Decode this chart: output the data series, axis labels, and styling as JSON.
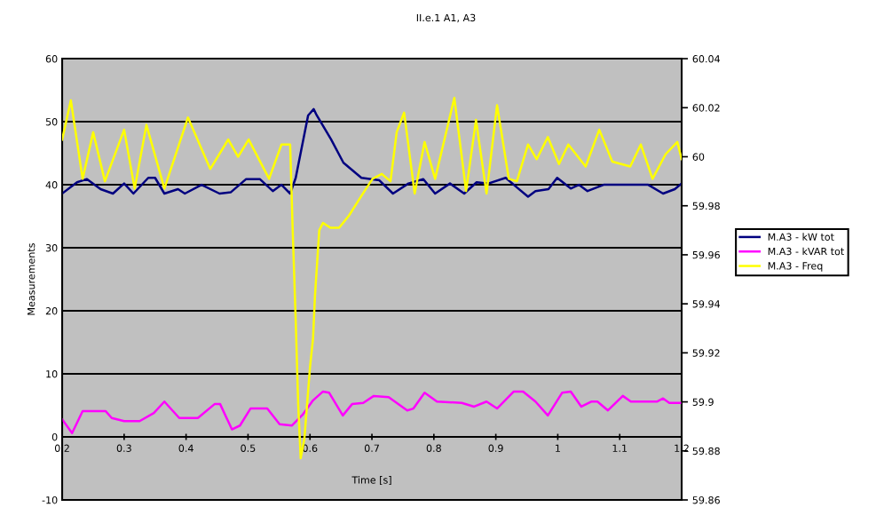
{
  "chart_data": {
    "type": "line",
    "title": "II.e.1 A1, A3",
    "xlabel": "Time [s]",
    "ylabel": "Measurements",
    "xlim": [
      0.2,
      1.2
    ],
    "xticks": [
      0.2,
      0.3,
      0.4,
      0.5,
      0.6,
      0.7,
      0.8,
      0.9,
      1,
      1.1,
      1.2
    ],
    "ylim": [
      -10,
      60
    ],
    "yticks": [
      -10,
      0,
      10,
      20,
      30,
      40,
      50,
      60
    ],
    "y2lim": [
      59.86,
      60.04
    ],
    "y2ticks": [
      59.86,
      59.88,
      59.9,
      59.92,
      59.94,
      59.96,
      59.98,
      60,
      60.02,
      60.04
    ],
    "grid": "y",
    "legend": "right",
    "line_style": "solid",
    "marker": "none",
    "series": [
      {
        "name": "M.A3 - kW tot",
        "color": "#000080",
        "x": [
          0.2,
          0.224,
          0.24,
          0.262,
          0.282,
          0.3,
          0.315,
          0.339,
          0.35,
          0.365,
          0.387,
          0.398,
          0.425,
          0.454,
          0.472,
          0.497,
          0.519,
          0.54,
          0.554,
          0.568,
          0.577,
          0.597,
          0.606,
          0.611,
          0.634,
          0.654,
          0.683,
          0.712,
          0.734,
          0.759,
          0.783,
          0.802,
          0.826,
          0.849,
          0.869,
          0.888,
          0.916,
          0.935,
          0.952,
          0.964,
          0.985,
          0.999,
          1.021,
          1.034,
          1.048,
          1.074,
          1.146,
          1.17,
          1.189,
          1.2
        ],
        "values": [
          38.6,
          40.4,
          40.9,
          39.3,
          38.6,
          40.2,
          38.6,
          41.1,
          41.1,
          38.6,
          39.3,
          38.6,
          40.0,
          38.6,
          38.8,
          40.9,
          40.9,
          39.0,
          40.0,
          38.6,
          41.1,
          51.0,
          52.0,
          51.0,
          47.2,
          43.5,
          41.1,
          40.7,
          38.6,
          40.2,
          40.9,
          38.6,
          40.2,
          38.6,
          40.4,
          40.2,
          41.1,
          39.5,
          38.1,
          39.0,
          39.3,
          41.1,
          39.4,
          40.0,
          39.0,
          40.0,
          40.0,
          38.6,
          39.3,
          40.2
        ]
      },
      {
        "name": "M.A3 - kVAR tot",
        "color": "#ff00ff",
        "x": [
          0.2,
          0.216,
          0.233,
          0.27,
          0.28,
          0.3,
          0.325,
          0.348,
          0.365,
          0.389,
          0.419,
          0.446,
          0.455,
          0.474,
          0.487,
          0.504,
          0.531,
          0.551,
          0.571,
          0.588,
          0.605,
          0.621,
          0.631,
          0.653,
          0.668,
          0.686,
          0.703,
          0.727,
          0.757,
          0.767,
          0.785,
          0.805,
          0.845,
          0.865,
          0.885,
          0.902,
          0.929,
          0.944,
          0.964,
          0.984,
          1.007,
          1.021,
          1.038,
          1.054,
          1.064,
          1.081,
          1.105,
          1.118,
          1.16,
          1.17,
          1.18,
          1.2
        ],
        "values": [
          2.8,
          0.6,
          4.1,
          4.1,
          3.0,
          2.5,
          2.5,
          3.8,
          5.6,
          3.0,
          3.0,
          5.2,
          5.2,
          1.2,
          1.8,
          4.5,
          4.5,
          2.0,
          1.8,
          3.5,
          5.8,
          7.2,
          7.0,
          3.4,
          5.2,
          5.4,
          6.5,
          6.3,
          4.2,
          4.5,
          7.0,
          5.6,
          5.4,
          4.8,
          5.6,
          4.5,
          7.2,
          7.2,
          5.6,
          3.4,
          7.0,
          7.2,
          4.8,
          5.6,
          5.6,
          4.2,
          6.5,
          5.6,
          5.6,
          6.1,
          5.4,
          5.4
        ]
      },
      {
        "name": "M.A3 - Freq",
        "color": "#ffff00",
        "axis": "y2",
        "x": [
          0.2,
          0.214,
          0.233,
          0.25,
          0.269,
          0.3,
          0.317,
          0.336,
          0.365,
          0.403,
          0.439,
          0.468,
          0.484,
          0.501,
          0.534,
          0.554,
          0.568,
          0.572,
          0.577,
          0.581,
          0.585,
          0.591,
          0.6,
          0.605,
          0.608,
          0.615,
          0.621,
          0.633,
          0.647,
          0.663,
          0.683,
          0.701,
          0.716,
          0.73,
          0.74,
          0.752,
          0.769,
          0.785,
          0.802,
          0.833,
          0.852,
          0.868,
          0.885,
          0.902,
          0.921,
          0.934,
          0.952,
          0.966,
          0.984,
          1.002,
          1.017,
          1.045,
          1.067,
          1.088,
          1.117,
          1.134,
          1.153,
          1.174,
          1.193,
          1.2
        ],
        "values": [
          60.007,
          60.023,
          59.991,
          60.01,
          59.99,
          60.011,
          59.987,
          60.013,
          59.987,
          60.016,
          59.995,
          60.007,
          60.0,
          60.007,
          59.991,
          60.005,
          60.005,
          59.971,
          59.933,
          59.899,
          59.877,
          59.885,
          59.914,
          59.926,
          59.943,
          59.97,
          59.973,
          59.971,
          59.971,
          59.976,
          59.984,
          59.991,
          59.993,
          59.99,
          60.01,
          60.018,
          59.985,
          60.006,
          59.991,
          60.024,
          59.986,
          60.015,
          59.985,
          60.021,
          59.991,
          59.99,
          60.005,
          59.999,
          60.008,
          59.997,
          60.005,
          59.996,
          60.011,
          59.998,
          59.996,
          60.005,
          59.991,
          60.001,
          60.006,
          59.999
        ]
      }
    ]
  }
}
